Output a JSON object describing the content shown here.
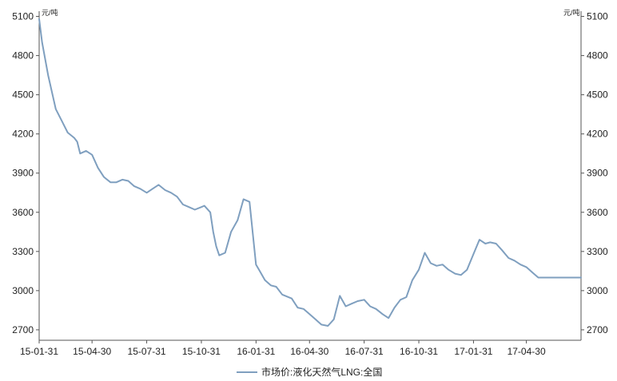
{
  "chart_data": {
    "type": "line",
    "title": "",
    "xlabel": "",
    "ylabel": "",
    "y_unit": "元/吨",
    "ylim": [
      2620,
      5140
    ],
    "yticks": [
      2700,
      3000,
      3300,
      3600,
      3900,
      4200,
      4500,
      4800,
      5100
    ],
    "xlim": [
      "2015-01-31",
      "2017-07-31"
    ],
    "xticks": [
      {
        "date": "2015-01-31",
        "label": "15-01-31"
      },
      {
        "date": "2015-04-30",
        "label": "15-04-30"
      },
      {
        "date": "2015-07-31",
        "label": "15-07-31"
      },
      {
        "date": "2015-10-31",
        "label": "15-10-31"
      },
      {
        "date": "2016-01-31",
        "label": "16-01-31"
      },
      {
        "date": "2016-04-30",
        "label": "16-04-30"
      },
      {
        "date": "2016-07-31",
        "label": "16-07-31"
      },
      {
        "date": "2016-10-31",
        "label": "16-10-31"
      },
      {
        "date": "2017-01-31",
        "label": "17-01-31"
      },
      {
        "date": "2017-04-30",
        "label": "17-04-30"
      }
    ],
    "grid": false,
    "dual_y_axis": true,
    "legend_position": "bottom-center",
    "line_color": "#7f9fbf",
    "series": [
      {
        "name": "市场价:液化天然气LNG:全国",
        "x": [
          "2015-01-31",
          "2015-02-05",
          "2015-02-15",
          "2015-02-28",
          "2015-03-10",
          "2015-03-20",
          "2015-03-31",
          "2015-04-05",
          "2015-04-10",
          "2015-04-20",
          "2015-04-30",
          "2015-05-10",
          "2015-05-20",
          "2015-05-31",
          "2015-06-10",
          "2015-06-20",
          "2015-06-30",
          "2015-07-10",
          "2015-07-20",
          "2015-07-31",
          "2015-08-10",
          "2015-08-20",
          "2015-08-31",
          "2015-09-10",
          "2015-09-20",
          "2015-09-30",
          "2015-10-10",
          "2015-10-20",
          "2015-10-31",
          "2015-11-05",
          "2015-11-15",
          "2015-11-20",
          "2015-11-25",
          "2015-11-30",
          "2015-12-10",
          "2015-12-20",
          "2015-12-31",
          "2016-01-10",
          "2016-01-20",
          "2016-01-31",
          "2016-02-05",
          "2016-02-15",
          "2016-02-25",
          "2016-03-05",
          "2016-03-15",
          "2016-03-31",
          "2016-04-10",
          "2016-04-20",
          "2016-04-30",
          "2016-05-10",
          "2016-05-20",
          "2016-05-31",
          "2016-06-10",
          "2016-06-20",
          "2016-06-30",
          "2016-07-10",
          "2016-07-20",
          "2016-07-31",
          "2016-08-10",
          "2016-08-20",
          "2016-08-31",
          "2016-09-10",
          "2016-09-20",
          "2016-09-30",
          "2016-10-10",
          "2016-10-20",
          "2016-10-31",
          "2016-11-10",
          "2016-11-20",
          "2016-11-30",
          "2016-12-10",
          "2016-12-20",
          "2016-12-31",
          "2017-01-10",
          "2017-01-20",
          "2017-01-31",
          "2017-02-10",
          "2017-02-20",
          "2017-02-28",
          "2017-03-10",
          "2017-03-20",
          "2017-03-31",
          "2017-04-10",
          "2017-04-20",
          "2017-04-30",
          "2017-05-10",
          "2017-05-20",
          "2017-05-31",
          "2017-06-10",
          "2017-06-20",
          "2017-06-30",
          "2017-07-10",
          "2017-07-20",
          "2017-07-31"
        ],
        "values": [
          5080,
          4900,
          4650,
          4390,
          4300,
          4210,
          4170,
          4140,
          4050,
          4070,
          4040,
          3940,
          3870,
          3830,
          3830,
          3850,
          3840,
          3800,
          3780,
          3750,
          3780,
          3810,
          3770,
          3750,
          3720,
          3660,
          3640,
          3620,
          3640,
          3650,
          3600,
          3450,
          3340,
          3270,
          3290,
          3450,
          3540,
          3700,
          3680,
          3200,
          3160,
          3080,
          3040,
          3030,
          2970,
          2940,
          2870,
          2860,
          2820,
          2780,
          2740,
          2730,
          2780,
          2960,
          2880,
          2900,
          2920,
          2930,
          2880,
          2860,
          2820,
          2790,
          2870,
          2930,
          2950,
          3080,
          3160,
          3290,
          3210,
          3190,
          3200,
          3160,
          3130,
          3120,
          3160,
          3280,
          3390,
          3360,
          3370,
          3360,
          3310,
          3250,
          3230,
          3200,
          3180,
          3140,
          3100,
          3100,
          3100,
          3100,
          3100,
          3100,
          3100,
          3100
        ]
      }
    ]
  }
}
